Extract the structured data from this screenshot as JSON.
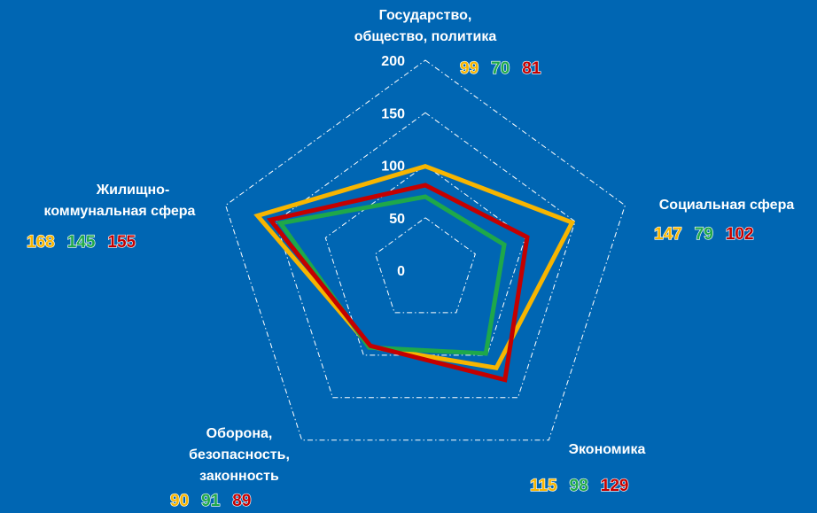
{
  "chart_data": {
    "type": "radar",
    "categories": [
      [
        "Государство,",
        "общество, политика"
      ],
      [
        "Социальная сфера"
      ],
      [
        "Экономика"
      ],
      [
        "Оборона,",
        "безопасность,",
        "законность"
      ],
      [
        "Жилищно-",
        "коммунальная сфера"
      ]
    ],
    "series": [
      {
        "color": "#f7b500",
        "values": [
          99,
          147,
          115,
          90,
          168
        ]
      },
      {
        "color": "#1ea84a",
        "values": [
          70,
          79,
          98,
          91,
          145
        ]
      },
      {
        "color": "#c40000",
        "values": [
          81,
          102,
          129,
          89,
          155
        ]
      }
    ],
    "ylim": [
      0,
      200
    ],
    "yticks": [
      0,
      50,
      100,
      150,
      200
    ],
    "grid": true
  }
}
